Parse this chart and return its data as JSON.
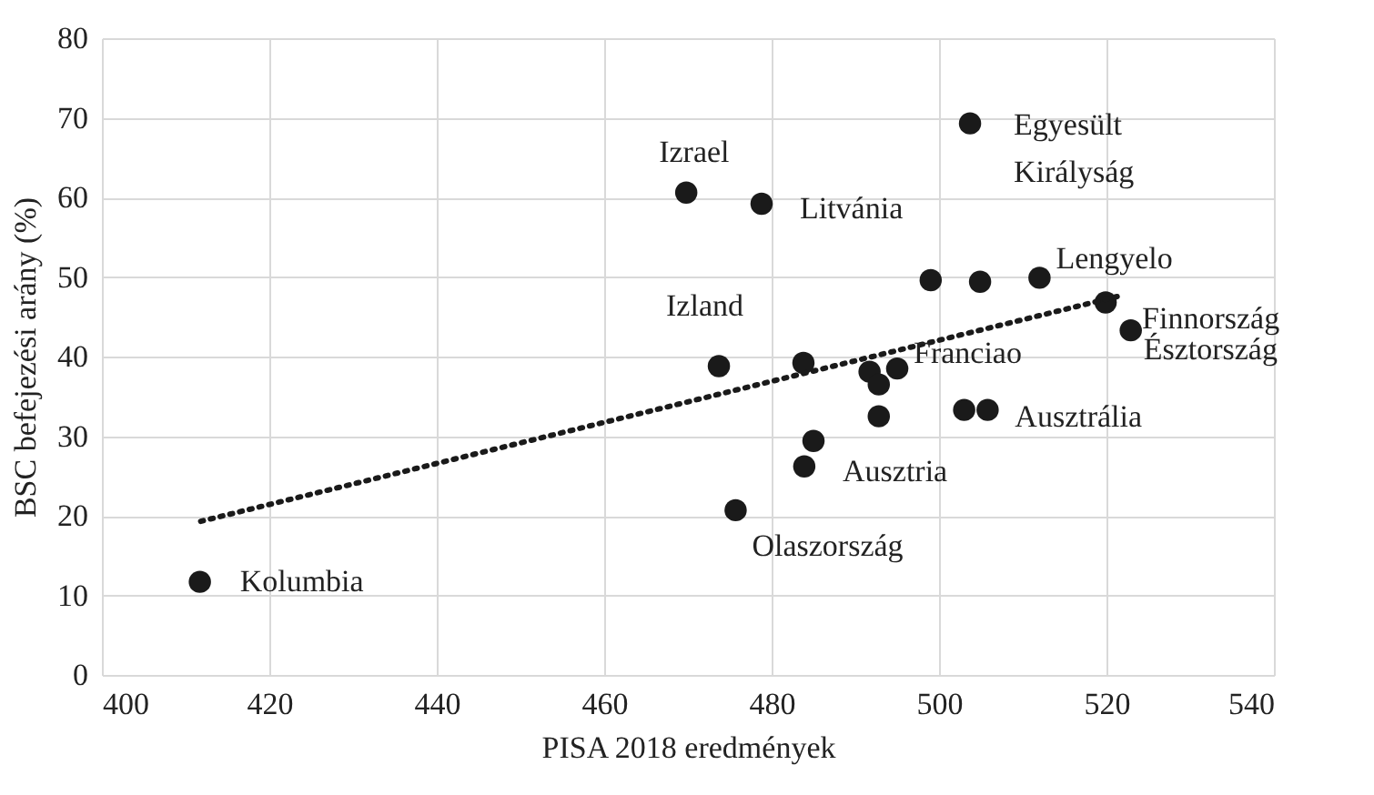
{
  "chart_data": {
    "type": "scatter",
    "xlabel": "PISA 2018 eredmények",
    "ylabel": "BSC befejezési arány (%)",
    "xlim": [
      400,
      540
    ],
    "xticks": [
      400,
      420,
      440,
      460,
      480,
      500,
      520,
      540
    ],
    "ylim": [
      0,
      80
    ],
    "yticks": [
      0,
      10,
      20,
      30,
      40,
      50,
      60,
      70,
      80
    ],
    "grid": true,
    "series": [
      {
        "color": "#1a1a1a",
        "marker": "circle",
        "x": [
          411.7,
          469.8,
          473.7,
          478.8,
          503.7,
          499,
          504.9,
          512,
          519.9,
          522.9,
          483.8,
          491.7,
          495,
          492.8,
          492.8,
          503,
          505.8,
          485,
          483.9,
          475.7
        ],
        "values": [
          11.7,
          60.6,
          38.8,
          59.2,
          69.3,
          49.6,
          49.4,
          49.9,
          46.8,
          43.3,
          39.2,
          38.1,
          38.5,
          36.5,
          32.5,
          33.3,
          33.3,
          29.4,
          26.2,
          20.7
        ]
      },
      {
        "type": "line",
        "color": "#1a1a1a",
        "line_style": "dotted",
        "marker": "none",
        "x": [
          411.8,
          521.5
        ],
        "values": [
          19.3,
          47.6
        ]
      }
    ],
    "annotations": [
      {
        "text": "Kolumbia",
        "x": 411.7,
        "y": 11.7
      },
      {
        "text": "Izrael",
        "x": 469.8,
        "y": 60.6
      },
      {
        "text": "Litvánia",
        "x": 478.8,
        "y": 59.2
      },
      {
        "text": "Egyesült\nKirályság",
        "x": 503.7,
        "y": 69.3
      },
      {
        "text": "Lengyelo",
        "x": 512,
        "y": 49.9
      },
      {
        "text": "Izland",
        "x": 473.7,
        "y": 38.8
      },
      {
        "text": "Finnország",
        "x": 519.9,
        "y": 46.8
      },
      {
        "text": "Észtország",
        "x": 522.9,
        "y": 43.3
      },
      {
        "text": "Franciao",
        "x": 495,
        "y": 38.5
      },
      {
        "text": "Ausztrália",
        "x": 505.8,
        "y": 33.3
      },
      {
        "text": "Ausztria",
        "x": 485,
        "y": 29.4
      },
      {
        "text": "Olaszország",
        "x": 475.7,
        "y": 20.7
      }
    ]
  }
}
